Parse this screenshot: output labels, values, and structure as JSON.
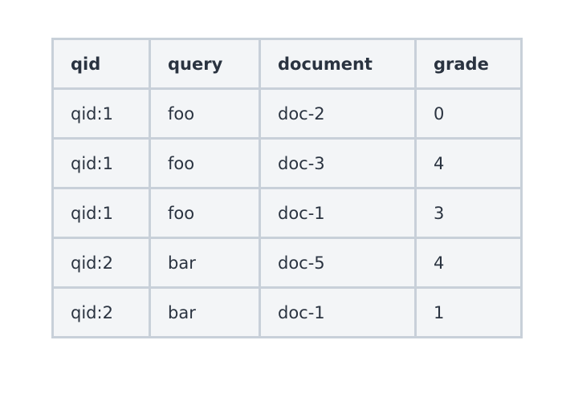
{
  "table": {
    "headers": [
      "qid",
      "query",
      "document",
      "grade"
    ],
    "rows": [
      [
        "qid:1",
        "foo",
        "doc-2",
        "0"
      ],
      [
        "qid:1",
        "foo",
        "doc-3",
        "4"
      ],
      [
        "qid:1",
        "foo",
        "doc-1",
        "3"
      ],
      [
        "qid:2",
        "bar",
        "doc-5",
        "4"
      ],
      [
        "qid:2",
        "bar",
        "doc-1",
        "1"
      ]
    ]
  }
}
